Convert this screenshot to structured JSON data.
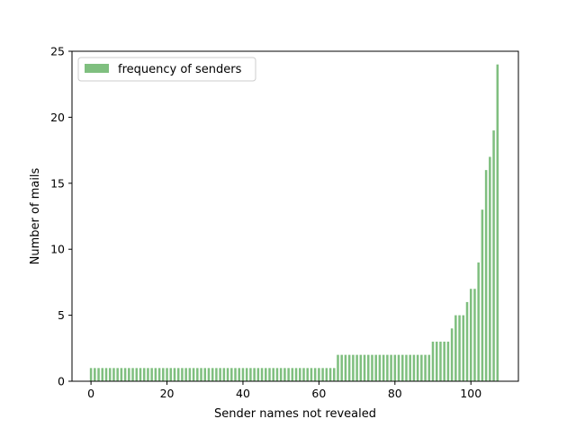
{
  "chart_data": {
    "type": "bar",
    "title": "",
    "xlabel": "Sender names not revealed",
    "ylabel": "Number of mails",
    "xlim": [
      -5,
      112.5
    ],
    "ylim": [
      0,
      25
    ],
    "x_ticks": [
      0,
      20,
      40,
      60,
      80,
      100
    ],
    "y_ticks": [
      0,
      5,
      10,
      15,
      20,
      25
    ],
    "grid": false,
    "legend_position": "top-left",
    "bar_color": "#7fbf7f",
    "series": [
      {
        "name": "frequency of senders",
        "values": [
          1,
          1,
          1,
          1,
          1,
          1,
          1,
          1,
          1,
          1,
          1,
          1,
          1,
          1,
          1,
          1,
          1,
          1,
          1,
          1,
          1,
          1,
          1,
          1,
          1,
          1,
          1,
          1,
          1,
          1,
          1,
          1,
          1,
          1,
          1,
          1,
          1,
          1,
          1,
          1,
          1,
          1,
          1,
          1,
          1,
          1,
          1,
          1,
          1,
          1,
          1,
          1,
          1,
          1,
          1,
          1,
          1,
          1,
          1,
          1,
          1,
          1,
          1,
          1,
          1,
          2,
          2,
          2,
          2,
          2,
          2,
          2,
          2,
          2,
          2,
          2,
          2,
          2,
          2,
          2,
          2,
          2,
          2,
          2,
          2,
          2,
          2,
          2,
          2,
          2,
          3,
          3,
          3,
          3,
          3,
          4,
          5,
          5,
          5,
          6,
          7,
          7,
          9,
          13,
          16,
          17,
          19,
          24
        ]
      }
    ]
  }
}
